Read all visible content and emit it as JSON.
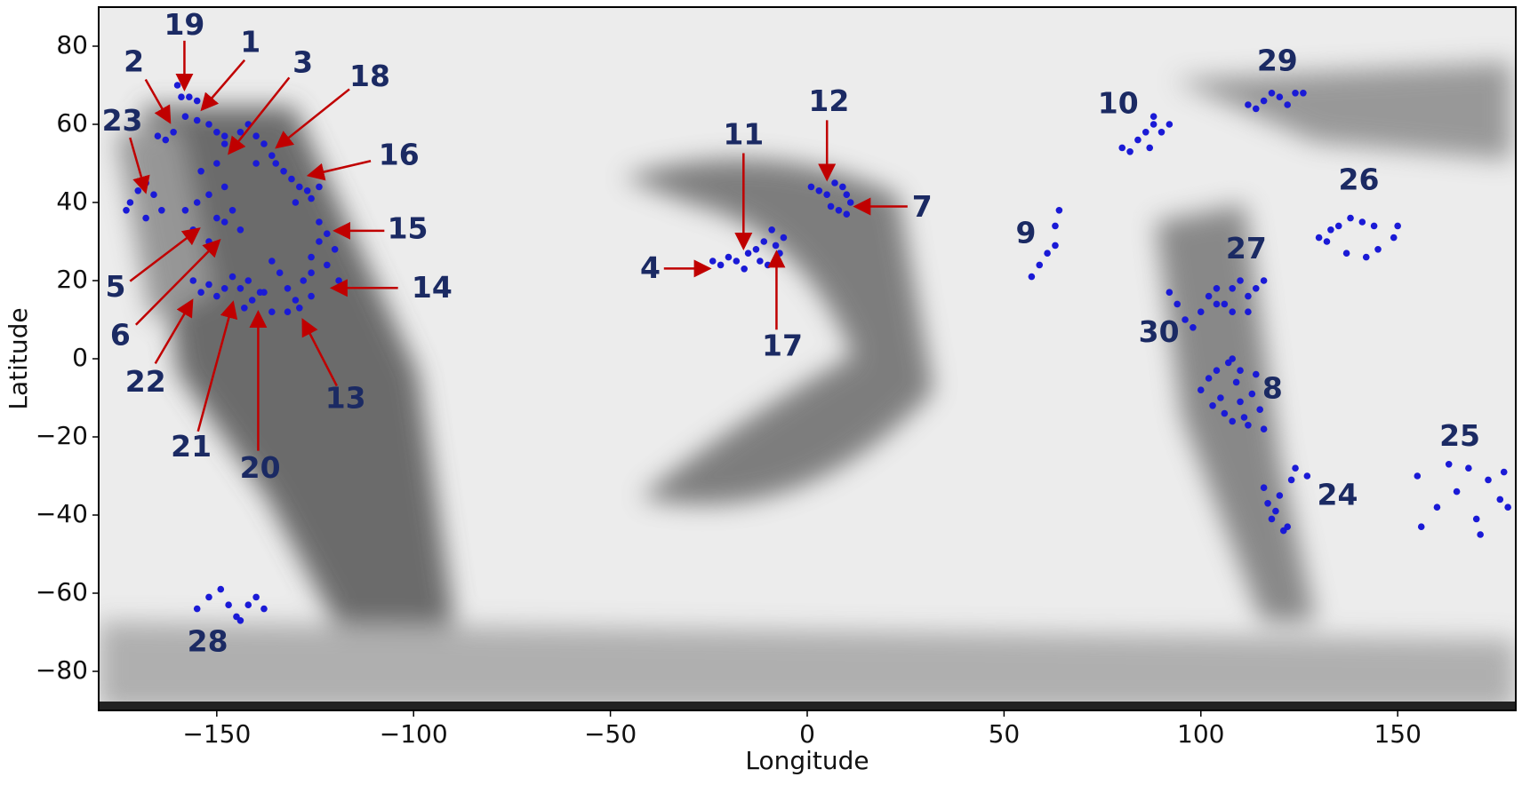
{
  "chart_data": {
    "type": "scatter",
    "xlabel": "Longitude",
    "ylabel": "Latitude",
    "xlim": [
      -180,
      180
    ],
    "ylim": [
      -90,
      90
    ],
    "xticks": [
      {
        "value": -150,
        "label": "−150"
      },
      {
        "value": -100,
        "label": "−100"
      },
      {
        "value": -50,
        "label": "−50"
      },
      0,
      50,
      100,
      150
    ],
    "yticks": [
      80,
      60,
      40,
      20,
      0,
      {
        "value": -20,
        "label": "−20"
      },
      {
        "value": -40,
        "label": "−40"
      },
      {
        "value": -60,
        "label": "−60"
      },
      {
        "value": -80,
        "label": "−80"
      }
    ],
    "color": "#1a1ad6",
    "x": [
      -160,
      -159,
      -157,
      -155,
      -165,
      -163,
      -161,
      -158,
      -155,
      -152,
      -150,
      -148,
      -148,
      -146,
      -144,
      -142,
      -140,
      -138,
      -136,
      -140,
      -135,
      -133,
      -131,
      -129,
      -127,
      -130,
      -172,
      -170,
      -168,
      -166,
      -164,
      -168,
      -173,
      -158,
      -155,
      -152,
      -150,
      -148,
      -146,
      -144,
      -156,
      -152,
      -148,
      -154,
      -150,
      -124,
      -126,
      -124,
      -122,
      -120,
      -122,
      -126,
      -124,
      -126,
      -119,
      -128,
      -132,
      -130,
      -134,
      -136,
      -138,
      -126,
      -132,
      -136,
      -129,
      -156,
      -154,
      -152,
      -150,
      -148,
      -146,
      -144,
      -142,
      -141,
      -139,
      -143,
      -155,
      -152,
      -149,
      -147,
      -145,
      -142,
      -140,
      -138,
      -144,
      -24,
      -22,
      -20,
      -18,
      -16,
      -15,
      -13,
      -11,
      -9,
      -8,
      -7,
      -6,
      -12,
      -10,
      1,
      3,
      5,
      7,
      9,
      10,
      8,
      10,
      11,
      6,
      57,
      59,
      61,
      63,
      63,
      64,
      80,
      82,
      84,
      86,
      88,
      90,
      92,
      88,
      87,
      112,
      114,
      116,
      118,
      120,
      122,
      124,
      126,
      130,
      133,
      135,
      138,
      141,
      144,
      150,
      149,
      145,
      142,
      137,
      132,
      92,
      94,
      96,
      98,
      100,
      102,
      104,
      106,
      108,
      110,
      112,
      114,
      116,
      112,
      108,
      104,
      100,
      102,
      104,
      105,
      106,
      107,
      108,
      109,
      110,
      111,
      112,
      113,
      114,
      115,
      116,
      110,
      103,
      108,
      116,
      117,
      118,
      120,
      121,
      123,
      124,
      127,
      119,
      122,
      155,
      156,
      160,
      163,
      165,
      168,
      170,
      171,
      173,
      176,
      178,
      177
    ],
    "y": [
      70,
      67,
      67,
      66,
      57,
      56,
      58,
      62,
      61,
      60,
      58,
      57,
      55,
      54,
      58,
      60,
      57,
      55,
      52,
      50,
      50,
      48,
      46,
      44,
      43,
      40,
      40,
      43,
      45,
      42,
      38,
      36,
      38,
      38,
      40,
      42,
      36,
      35,
      38,
      33,
      33,
      30,
      44,
      48,
      50,
      44,
      41,
      35,
      32,
      28,
      24,
      26,
      30,
      22,
      20,
      20,
      18,
      15,
      22,
      25,
      17,
      16,
      12,
      12,
      13,
      20,
      17,
      19,
      16,
      18,
      21,
      18,
      20,
      15,
      17,
      13,
      -64,
      -61,
      -59,
      -63,
      -66,
      -63,
      -61,
      -64,
      -67,
      25,
      24,
      26,
      25,
      23,
      27,
      28,
      30,
      33,
      29,
      27,
      31,
      25,
      24,
      44,
      43,
      42,
      45,
      44,
      42,
      38,
      37,
      40,
      39,
      21,
      24,
      27,
      29,
      34,
      38,
      54,
      53,
      56,
      58,
      60,
      58,
      60,
      62,
      54,
      65,
      64,
      66,
      68,
      67,
      65,
      68,
      68,
      31,
      33,
      34,
      36,
      35,
      34,
      34,
      31,
      28,
      26,
      27,
      30,
      17,
      14,
      10,
      8,
      12,
      16,
      18,
      14,
      18,
      20,
      16,
      18,
      20,
      12,
      12,
      14,
      -8,
      -5,
      -3,
      -10,
      -14,
      -1,
      0,
      -6,
      -11,
      -15,
      -17,
      -9,
      -4,
      -13,
      -18,
      -3,
      -12,
      -16,
      -33,
      -37,
      -41,
      -35,
      -44,
      -31,
      -28,
      -30,
      -39,
      -43,
      -30,
      -43,
      -38,
      -27,
      -34,
      -28,
      -41,
      -45,
      -31,
      -36,
      -38,
      -29
    ],
    "annotations": [
      "19",
      "1",
      "2",
      "3",
      "18",
      "23",
      "16",
      "12",
      "11",
      "7",
      "15",
      "9",
      "10",
      "29",
      "26",
      "27",
      "4",
      "14",
      "5",
      "17",
      "30",
      "6",
      "22",
      "13",
      "8",
      "21",
      "20",
      "25",
      "24",
      "28"
    ]
  }
}
